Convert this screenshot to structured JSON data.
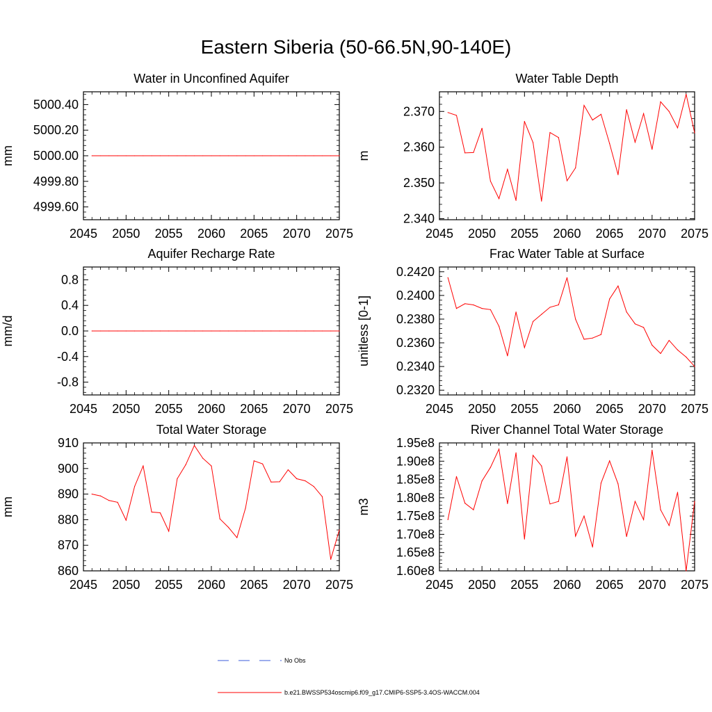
{
  "title": "Eastern Siberia (50-66.5N,90-140E)",
  "colors": {
    "model": "#ff0000",
    "obs": "#3b5bdb",
    "axis": "#000000"
  },
  "legend": {
    "obs_label": "No Obs",
    "model_label": "b.e21.BWSSP534oscmip6.f09_g17.CMIP6-SSP5-3.4OS-WACCM.004"
  },
  "chart_data": [
    {
      "type": "line",
      "title": "Water in Unconfined Aquifer",
      "ylabel": "mm",
      "xlim": [
        2045,
        2075
      ],
      "ylim": [
        4999.5,
        5000.5
      ],
      "xticks": [
        2045,
        2050,
        2055,
        2060,
        2065,
        2070,
        2075
      ],
      "xtick_labels": [
        "2045",
        "2050",
        "2055",
        "2060",
        "2065",
        "2070",
        "2075"
      ],
      "yticks": [
        4999.6,
        4999.8,
        5000.0,
        5000.2,
        5000.4
      ],
      "ytick_labels": [
        "4999.60",
        "4999.80",
        "5000.00",
        "5000.20",
        "5000.40"
      ],
      "x": [
        2046,
        2047,
        2048,
        2049,
        2050,
        2051,
        2052,
        2053,
        2054,
        2055,
        2056,
        2057,
        2058,
        2059,
        2060,
        2061,
        2062,
        2063,
        2064,
        2065,
        2066,
        2067,
        2068,
        2069,
        2070,
        2071,
        2072,
        2073,
        2074,
        2075
      ],
      "series": [
        {
          "values": [
            5000,
            5000,
            5000,
            5000,
            5000,
            5000,
            5000,
            5000,
            5000,
            5000,
            5000,
            5000,
            5000,
            5000,
            5000,
            5000,
            5000,
            5000,
            5000,
            5000,
            5000,
            5000,
            5000,
            5000,
            5000,
            5000,
            5000,
            5000,
            5000,
            5000
          ]
        }
      ]
    },
    {
      "type": "line",
      "title": "Water Table Depth",
      "ylabel": "m",
      "xlim": [
        2045,
        2075
      ],
      "ylim": [
        2.3397,
        2.3755
      ],
      "xticks": [
        2045,
        2050,
        2055,
        2060,
        2065,
        2070,
        2075
      ],
      "xtick_labels": [
        "2045",
        "2050",
        "2055",
        "2060",
        "2065",
        "2070",
        "2075"
      ],
      "yticks": [
        2.34,
        2.35,
        2.36,
        2.37
      ],
      "ytick_labels": [
        "2.340",
        "2.350",
        "2.360",
        "2.370"
      ],
      "x": [
        2046,
        2047,
        2048,
        2049,
        2050,
        2051,
        2052,
        2053,
        2054,
        2055,
        2056,
        2057,
        2058,
        2059,
        2060,
        2061,
        2062,
        2063,
        2064,
        2065,
        2066,
        2067,
        2068,
        2069,
        2070,
        2071,
        2072,
        2073,
        2074,
        2075
      ],
      "series": [
        {
          "values": [
            2.3697,
            2.3689,
            2.3584,
            2.3585,
            2.3653,
            2.3505,
            2.3456,
            2.3538,
            2.3451,
            2.3672,
            2.3613,
            2.3449,
            2.3641,
            2.3627,
            2.3506,
            2.3542,
            2.3717,
            2.3676,
            2.3692,
            2.361,
            2.3523,
            2.3705,
            2.3614,
            2.3694,
            2.3594,
            2.3727,
            2.37,
            2.3654,
            2.3748,
            2.364
          ]
        }
      ]
    },
    {
      "type": "line",
      "title": "Aquifer Recharge Rate",
      "ylabel": "mm/d",
      "xlim": [
        2045,
        2075
      ],
      "ylim": [
        -1.0,
        1.0
      ],
      "xticks": [
        2045,
        2050,
        2055,
        2060,
        2065,
        2070,
        2075
      ],
      "xtick_labels": [
        "2045",
        "2050",
        "2055",
        "2060",
        "2065",
        "2070",
        "2075"
      ],
      "yticks": [
        -0.8,
        -0.4,
        0.0,
        0.4,
        0.8
      ],
      "ytick_labels": [
        "-0.8",
        "-0.4",
        "0.0",
        "0.4",
        "0.8"
      ],
      "x": [
        2046,
        2047,
        2048,
        2049,
        2050,
        2051,
        2052,
        2053,
        2054,
        2055,
        2056,
        2057,
        2058,
        2059,
        2060,
        2061,
        2062,
        2063,
        2064,
        2065,
        2066,
        2067,
        2068,
        2069,
        2070,
        2071,
        2072,
        2073,
        2074,
        2075
      ],
      "series": [
        {
          "values": [
            0,
            0,
            0,
            0,
            0,
            0,
            0,
            0,
            0,
            0,
            0,
            0,
            0,
            0,
            0,
            0,
            0,
            0,
            0,
            0,
            0,
            0,
            0,
            0,
            0,
            0,
            0,
            0,
            0,
            0
          ]
        }
      ]
    },
    {
      "type": "line",
      "title": "Frac Water Table at Surface",
      "ylabel": "unitless [0-1]",
      "xlim": [
        2045,
        2075
      ],
      "ylim": [
        0.2316,
        0.2424
      ],
      "xticks": [
        2045,
        2050,
        2055,
        2060,
        2065,
        2070,
        2075
      ],
      "xtick_labels": [
        "2045",
        "2050",
        "2055",
        "2060",
        "2065",
        "2070",
        "2075"
      ],
      "yticks": [
        0.232,
        0.234,
        0.236,
        0.238,
        0.24,
        0.242
      ],
      "ytick_labels": [
        "0.2320",
        "0.2340",
        "0.2360",
        "0.2380",
        "0.2400",
        "0.2420"
      ],
      "x": [
        2046,
        2047,
        2048,
        2049,
        2050,
        2051,
        2052,
        2053,
        2054,
        2055,
        2056,
        2057,
        2058,
        2059,
        2060,
        2061,
        2062,
        2063,
        2064,
        2065,
        2066,
        2067,
        2068,
        2069,
        2070,
        2071,
        2072,
        2073,
        2074,
        2075
      ],
      "series": [
        {
          "values": [
            0.2415,
            0.2389,
            0.2393,
            0.2392,
            0.2389,
            0.2388,
            0.2374,
            0.2349,
            0.2386,
            0.2356,
            0.2378,
            0.2384,
            0.239,
            0.2392,
            0.2415,
            0.238,
            0.2363,
            0.2364,
            0.2367,
            0.2397,
            0.2408,
            0.2386,
            0.2376,
            0.2373,
            0.2358,
            0.2351,
            0.2362,
            0.2354,
            0.2348,
            0.234
          ]
        }
      ]
    },
    {
      "type": "line",
      "title": "Total Water Storage",
      "ylabel": "mm",
      "xlim": [
        2045,
        2075
      ],
      "ylim": [
        860,
        910
      ],
      "xticks": [
        2045,
        2050,
        2055,
        2060,
        2065,
        2070,
        2075
      ],
      "xtick_labels": [
        "2045",
        "2050",
        "2055",
        "2060",
        "2065",
        "2070",
        "2075"
      ],
      "yticks": [
        860,
        870,
        880,
        890,
        900,
        910
      ],
      "ytick_labels": [
        "860",
        "870",
        "880",
        "890",
        "900",
        "910"
      ],
      "x": [
        2046,
        2047,
        2048,
        2049,
        2050,
        2051,
        2052,
        2053,
        2054,
        2055,
        2056,
        2057,
        2058,
        2059,
        2060,
        2061,
        2062,
        2063,
        2064,
        2065,
        2066,
        2067,
        2068,
        2069,
        2070,
        2071,
        2072,
        2073,
        2074,
        2075
      ],
      "series": [
        {
          "values": [
            890.0,
            889.3,
            887.5,
            886.8,
            879.8,
            893.0,
            901.0,
            883.0,
            882.7,
            875.5,
            896.0,
            901.5,
            909.0,
            904.0,
            901.0,
            880.3,
            877.0,
            873.0,
            884.5,
            903.0,
            901.8,
            894.7,
            894.8,
            899.5,
            896.0,
            895.2,
            893.0,
            889.0,
            864.5,
            876.0
          ]
        }
      ]
    },
    {
      "type": "line",
      "title": "River Channel Total Water Storage",
      "ylabel": "m3",
      "xlim": [
        2045,
        2075
      ],
      "ylim": [
        160000000,
        195000000
      ],
      "xticks": [
        2045,
        2050,
        2055,
        2060,
        2065,
        2070,
        2075
      ],
      "xtick_labels": [
        "2045",
        "2050",
        "2055",
        "2060",
        "2065",
        "2070",
        "2075"
      ],
      "yticks": [
        160000000,
        165000000,
        170000000,
        175000000,
        180000000,
        185000000,
        190000000,
        195000000
      ],
      "ytick_labels": [
        "1.60e8",
        "1.65e8",
        "1.70e8",
        "1.75e8",
        "1.80e8",
        "1.85e8",
        "1.90e8",
        "1.95e8"
      ],
      "x": [
        2046,
        2047,
        2048,
        2049,
        2050,
        2051,
        2052,
        2053,
        2054,
        2055,
        2056,
        2057,
        2058,
        2059,
        2060,
        2061,
        2062,
        2063,
        2064,
        2065,
        2066,
        2067,
        2068,
        2069,
        2070,
        2071,
        2072,
        2073,
        2074,
        2075
      ],
      "series": [
        {
          "values": [
            174000000,
            185800000,
            178500000,
            176700000,
            184600000,
            188300000,
            193300000,
            178400000,
            192300000,
            168700000,
            191600000,
            188700000,
            178300000,
            179000000,
            191200000,
            169500000,
            175000000,
            166500000,
            184000000,
            190100000,
            183800000,
            169400000,
            179000000,
            174000000,
            193000000,
            176700000,
            172400000,
            181500000,
            160000000,
            179000000
          ]
        }
      ]
    }
  ]
}
